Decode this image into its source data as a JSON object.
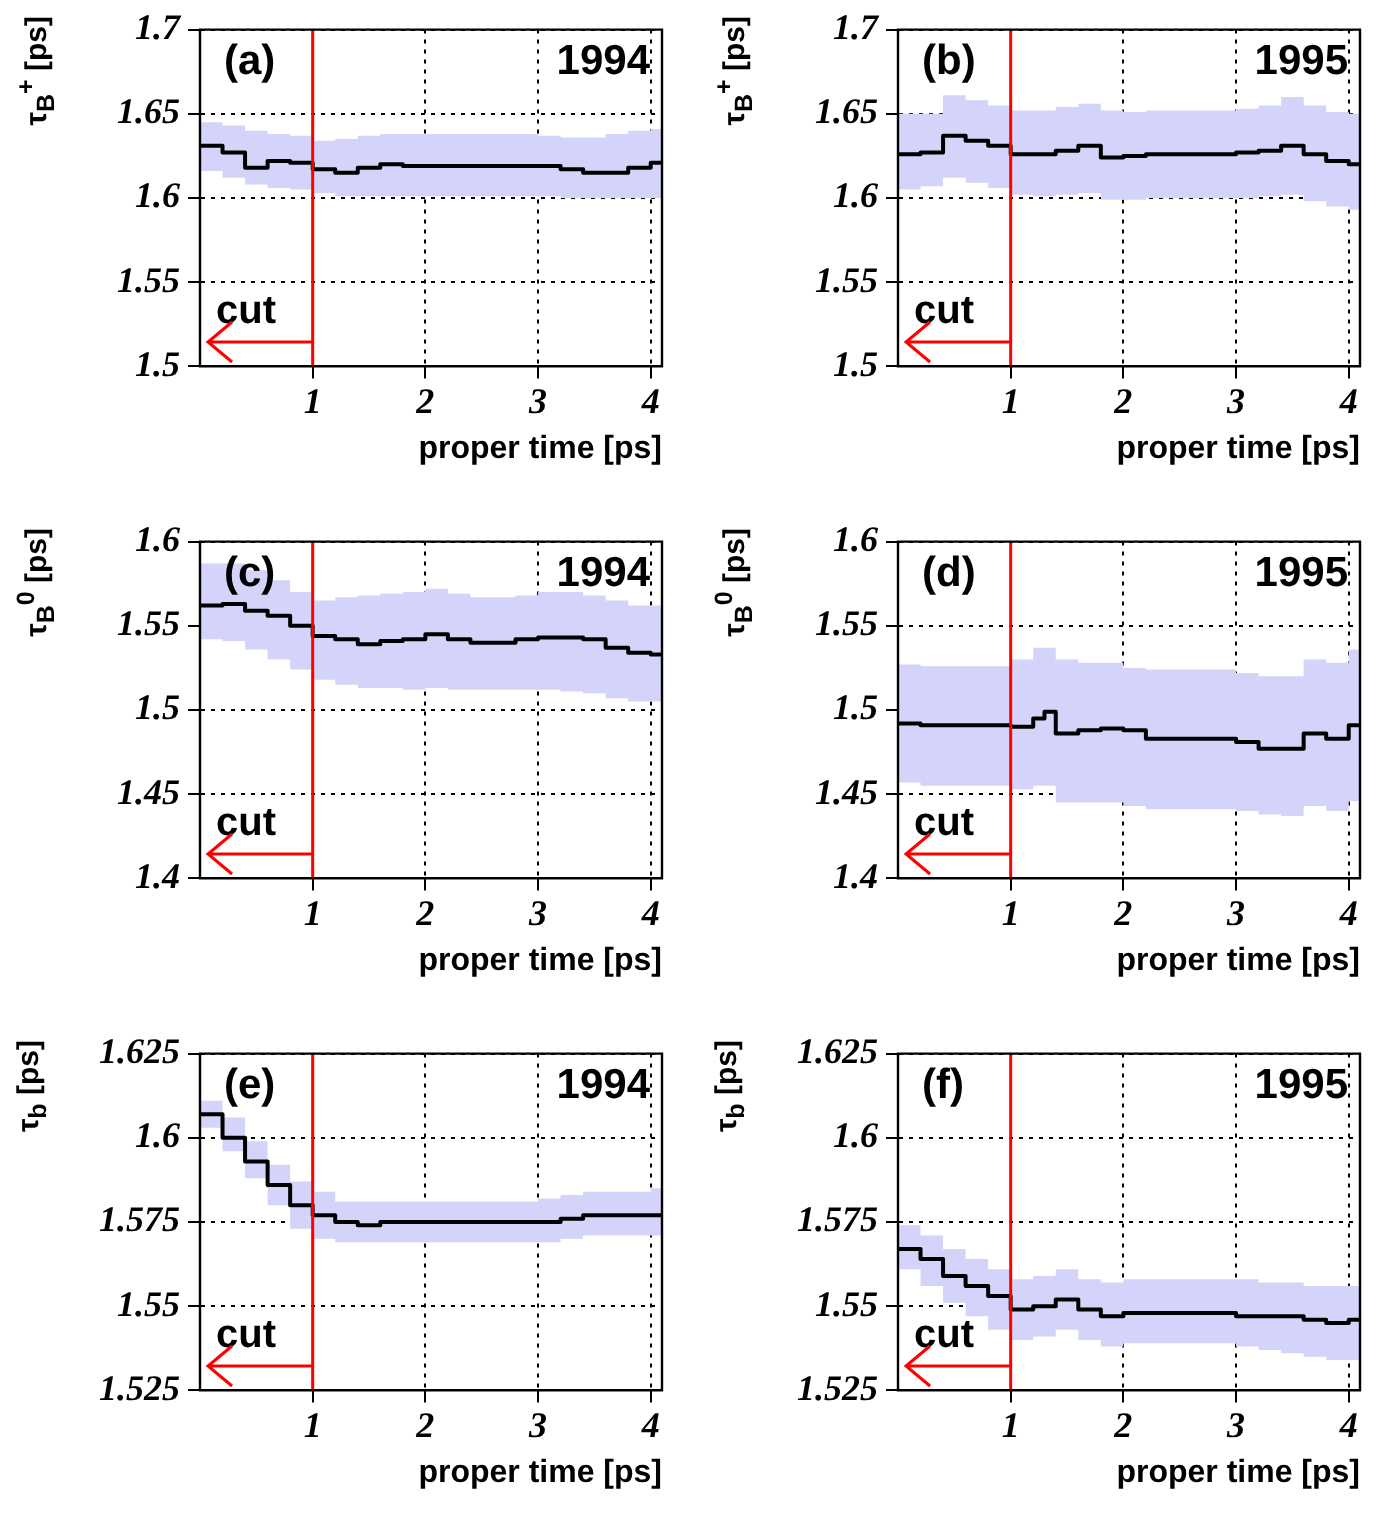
{
  "chart_data": [
    {
      "type": "step",
      "ylabel": "τ$_{B}$$^{+}$ [ps]",
      "xlabel": "proper time [ps]",
      "annotations": [
        "(a)",
        "1994"
      ],
      "xlim": [
        0,
        4.1
      ],
      "xticks": [
        1,
        2,
        3,
        4
      ],
      "ylim": [
        1.5,
        1.7
      ],
      "yticks": [
        1.5,
        1.55,
        1.6,
        1.65,
        1.7
      ],
      "grid": true,
      "ref_lines": [
        {
          "axis": "x",
          "value": 1,
          "label": "cut",
          "color": "#ff0000"
        }
      ],
      "x": [
        0,
        0.2,
        0.4,
        0.6,
        0.8,
        1.0,
        1.2,
        1.4,
        1.6,
        1.8,
        2.0,
        2.2,
        2.4,
        2.6,
        2.8,
        3.0,
        3.2,
        3.4,
        3.6,
        3.8,
        4.0,
        4.1
      ],
      "series": [
        {
          "color": "#000000",
          "values": [
            1.631,
            1.627,
            1.618,
            1.622,
            1.621,
            1.617,
            1.615,
            1.618,
            1.62,
            1.619,
            1.619,
            1.619,
            1.619,
            1.619,
            1.619,
            1.619,
            1.617,
            1.615,
            1.615,
            1.618,
            1.621,
            1.621
          ],
          "lower": [
            1.616,
            1.612,
            1.608,
            1.606,
            1.605,
            1.603,
            1.601,
            1.601,
            1.601,
            1.601,
            1.601,
            1.601,
            1.601,
            1.601,
            1.601,
            1.601,
            1.6,
            1.6,
            1.6,
            1.6,
            1.6,
            1.6
          ],
          "upper": [
            1.645,
            1.643,
            1.64,
            1.638,
            1.637,
            1.634,
            1.635,
            1.637,
            1.638,
            1.638,
            1.638,
            1.638,
            1.638,
            1.638,
            1.638,
            1.637,
            1.636,
            1.636,
            1.638,
            1.64,
            1.641,
            1.641
          ]
        }
      ]
    },
    {
      "type": "step",
      "ylabel": "τ$_{B}$$^{+}$ [ps]",
      "xlabel": "proper time [ps]",
      "annotations": [
        "(b)",
        "1995"
      ],
      "xlim": [
        0,
        4.1
      ],
      "xticks": [
        1,
        2,
        3,
        4
      ],
      "ylim": [
        1.5,
        1.7
      ],
      "yticks": [
        1.5,
        1.55,
        1.6,
        1.65,
        1.7
      ],
      "grid": true,
      "ref_lines": [
        {
          "axis": "x",
          "value": 1,
          "label": "cut",
          "color": "#ff0000"
        }
      ],
      "x": [
        0,
        0.2,
        0.4,
        0.6,
        0.8,
        1.0,
        1.2,
        1.4,
        1.6,
        1.8,
        2.0,
        2.2,
        2.4,
        2.6,
        2.8,
        3.0,
        3.2,
        3.4,
        3.6,
        3.8,
        4.0,
        4.1
      ],
      "series": [
        {
          "color": "#000000",
          "values": [
            1.626,
            1.627,
            1.637,
            1.634,
            1.631,
            1.626,
            1.626,
            1.628,
            1.631,
            1.624,
            1.625,
            1.626,
            1.626,
            1.626,
            1.626,
            1.627,
            1.628,
            1.631,
            1.626,
            1.622,
            1.62,
            1.62
          ],
          "lower": [
            1.605,
            1.607,
            1.612,
            1.609,
            1.606,
            1.602,
            1.601,
            1.602,
            1.603,
            1.599,
            1.599,
            1.6,
            1.6,
            1.6,
            1.6,
            1.6,
            1.601,
            1.602,
            1.598,
            1.595,
            1.593,
            1.593
          ],
          "upper": [
            1.65,
            1.65,
            1.661,
            1.658,
            1.655,
            1.652,
            1.652,
            1.654,
            1.656,
            1.652,
            1.651,
            1.652,
            1.652,
            1.652,
            1.652,
            1.653,
            1.655,
            1.66,
            1.655,
            1.651,
            1.65,
            1.65
          ]
        }
      ]
    },
    {
      "type": "step",
      "ylabel": "τ$_{B}$$^{0}$ [ps]",
      "xlabel": "proper time [ps]",
      "annotations": [
        "(c)",
        "1994"
      ],
      "xlim": [
        0,
        4.1
      ],
      "xticks": [
        1,
        2,
        3,
        4
      ],
      "ylim": [
        1.4,
        1.6
      ],
      "yticks": [
        1.4,
        1.45,
        1.5,
        1.55,
        1.6
      ],
      "grid": true,
      "ref_lines": [
        {
          "axis": "x",
          "value": 1,
          "label": "cut",
          "color": "#ff0000"
        }
      ],
      "x": [
        0,
        0.2,
        0.4,
        0.6,
        0.8,
        1.0,
        1.2,
        1.4,
        1.6,
        1.8,
        2.0,
        2.2,
        2.4,
        2.6,
        2.8,
        3.0,
        3.2,
        3.4,
        3.6,
        3.8,
        4.0,
        4.1
      ],
      "series": [
        {
          "color": "#000000",
          "values": [
            1.562,
            1.563,
            1.559,
            1.556,
            1.55,
            1.544,
            1.542,
            1.539,
            1.541,
            1.542,
            1.545,
            1.542,
            1.54,
            1.54,
            1.542,
            1.543,
            1.543,
            1.542,
            1.537,
            1.534,
            1.533,
            1.533
          ],
          "lower": [
            1.542,
            1.541,
            1.536,
            1.53,
            1.524,
            1.518,
            1.515,
            1.513,
            1.513,
            1.512,
            1.513,
            1.512,
            1.512,
            1.512,
            1.512,
            1.512,
            1.511,
            1.51,
            1.507,
            1.505,
            1.505,
            1.505
          ],
          "upper": [
            1.587,
            1.587,
            1.583,
            1.577,
            1.57,
            1.565,
            1.567,
            1.568,
            1.569,
            1.57,
            1.572,
            1.569,
            1.567,
            1.567,
            1.568,
            1.57,
            1.57,
            1.568,
            1.565,
            1.562,
            1.562,
            1.562
          ]
        }
      ]
    },
    {
      "type": "step",
      "ylabel": "τ$_{B}$$^{0}$ [ps]",
      "xlabel": "proper time [ps]",
      "annotations": [
        "(d)",
        "1995"
      ],
      "xlim": [
        0,
        4.1
      ],
      "xticks": [
        1,
        2,
        3,
        4
      ],
      "ylim": [
        1.4,
        1.6
      ],
      "yticks": [
        1.4,
        1.45,
        1.5,
        1.55,
        1.6
      ],
      "grid": true,
      "ref_lines": [
        {
          "axis": "x",
          "value": 1,
          "label": "cut",
          "color": "#ff0000"
        }
      ],
      "x": [
        0,
        0.2,
        0.4,
        0.6,
        0.8,
        1.0,
        1.2,
        1.3,
        1.4,
        1.6,
        1.8,
        2.0,
        2.2,
        2.4,
        2.6,
        2.8,
        3.0,
        3.2,
        3.4,
        3.6,
        3.8,
        4.0,
        4.1
      ],
      "series": [
        {
          "color": "#000000",
          "values": [
            1.492,
            1.491,
            1.491,
            1.491,
            1.491,
            1.49,
            1.495,
            1.499,
            1.486,
            1.488,
            1.489,
            1.488,
            1.483,
            1.483,
            1.483,
            1.483,
            1.481,
            1.477,
            1.477,
            1.486,
            1.483,
            1.491,
            1.491
          ],
          "lower": [
            1.457,
            1.455,
            1.455,
            1.455,
            1.455,
            1.453,
            1.455,
            1.455,
            1.445,
            1.445,
            1.445,
            1.443,
            1.441,
            1.441,
            1.441,
            1.441,
            1.44,
            1.438,
            1.437,
            1.443,
            1.44,
            1.446,
            1.446
          ],
          "upper": [
            1.527,
            1.526,
            1.526,
            1.526,
            1.526,
            1.53,
            1.537,
            1.537,
            1.53,
            1.528,
            1.528,
            1.525,
            1.524,
            1.524,
            1.524,
            1.524,
            1.522,
            1.52,
            1.52,
            1.53,
            1.528,
            1.536,
            1.536
          ]
        }
      ]
    },
    {
      "type": "step",
      "ylabel": "τ$_{b}$ [ps]",
      "xlabel": "proper time [ps]",
      "annotations": [
        "(e)",
        "1994"
      ],
      "xlim": [
        0,
        4.1
      ],
      "xticks": [
        1,
        2,
        3,
        4
      ],
      "ylim": [
        1.525,
        1.625
      ],
      "yticks": [
        1.525,
        1.55,
        1.575,
        1.6,
        1.625
      ],
      "grid": true,
      "ref_lines": [
        {
          "axis": "x",
          "value": 1,
          "label": "cut",
          "color": "#ff0000"
        }
      ],
      "x": [
        0,
        0.2,
        0.4,
        0.6,
        0.8,
        1.0,
        1.2,
        1.4,
        1.6,
        1.8,
        2.0,
        2.2,
        2.4,
        2.6,
        2.8,
        3.0,
        3.2,
        3.4,
        3.6,
        3.8,
        4.0,
        4.1
      ],
      "series": [
        {
          "color": "#000000",
          "values": [
            1.607,
            1.6,
            1.593,
            1.586,
            1.58,
            1.577,
            1.575,
            1.574,
            1.575,
            1.575,
            1.575,
            1.575,
            1.575,
            1.575,
            1.575,
            1.575,
            1.576,
            1.577,
            1.577,
            1.577,
            1.577,
            1.577
          ],
          "lower": [
            1.603,
            1.596,
            1.588,
            1.58,
            1.573,
            1.57,
            1.569,
            1.569,
            1.569,
            1.569,
            1.569,
            1.569,
            1.569,
            1.569,
            1.569,
            1.569,
            1.57,
            1.571,
            1.571,
            1.571,
            1.571,
            1.571
          ],
          "upper": [
            1.611,
            1.606,
            1.599,
            1.592,
            1.587,
            1.584,
            1.581,
            1.581,
            1.581,
            1.581,
            1.581,
            1.581,
            1.581,
            1.581,
            1.581,
            1.582,
            1.583,
            1.584,
            1.584,
            1.584,
            1.585,
            1.585
          ]
        }
      ]
    },
    {
      "type": "step",
      "ylabel": "τ$_{b}$ [ps]",
      "xlabel": "proper time [ps]",
      "annotations": [
        "(f)",
        "1995"
      ],
      "xlim": [
        0,
        4.1
      ],
      "xticks": [
        1,
        2,
        3,
        4
      ],
      "ylim": [
        1.525,
        1.625
      ],
      "yticks": [
        1.525,
        1.55,
        1.575,
        1.6,
        1.625
      ],
      "grid": true,
      "ref_lines": [
        {
          "axis": "x",
          "value": 1,
          "label": "cut",
          "color": "#ff0000"
        }
      ],
      "x": [
        0,
        0.2,
        0.4,
        0.6,
        0.8,
        1.0,
        1.2,
        1.4,
        1.6,
        1.8,
        2.0,
        2.2,
        2.4,
        2.6,
        2.8,
        3.0,
        3.2,
        3.4,
        3.6,
        3.8,
        4.0,
        4.1
      ],
      "series": [
        {
          "color": "#000000",
          "values": [
            1.567,
            1.564,
            1.559,
            1.556,
            1.553,
            1.549,
            1.55,
            1.552,
            1.549,
            1.547,
            1.548,
            1.548,
            1.548,
            1.548,
            1.548,
            1.547,
            1.547,
            1.547,
            1.546,
            1.545,
            1.546,
            1.546
          ],
          "lower": [
            1.561,
            1.556,
            1.551,
            1.547,
            1.543,
            1.54,
            1.541,
            1.543,
            1.54,
            1.538,
            1.539,
            1.539,
            1.539,
            1.539,
            1.539,
            1.538,
            1.537,
            1.536,
            1.535,
            1.534,
            1.534,
            1.534
          ],
          "upper": [
            1.574,
            1.571,
            1.567,
            1.564,
            1.561,
            1.558,
            1.559,
            1.561,
            1.558,
            1.557,
            1.558,
            1.558,
            1.558,
            1.558,
            1.558,
            1.558,
            1.557,
            1.557,
            1.556,
            1.556,
            1.556,
            1.556
          ]
        }
      ]
    }
  ]
}
